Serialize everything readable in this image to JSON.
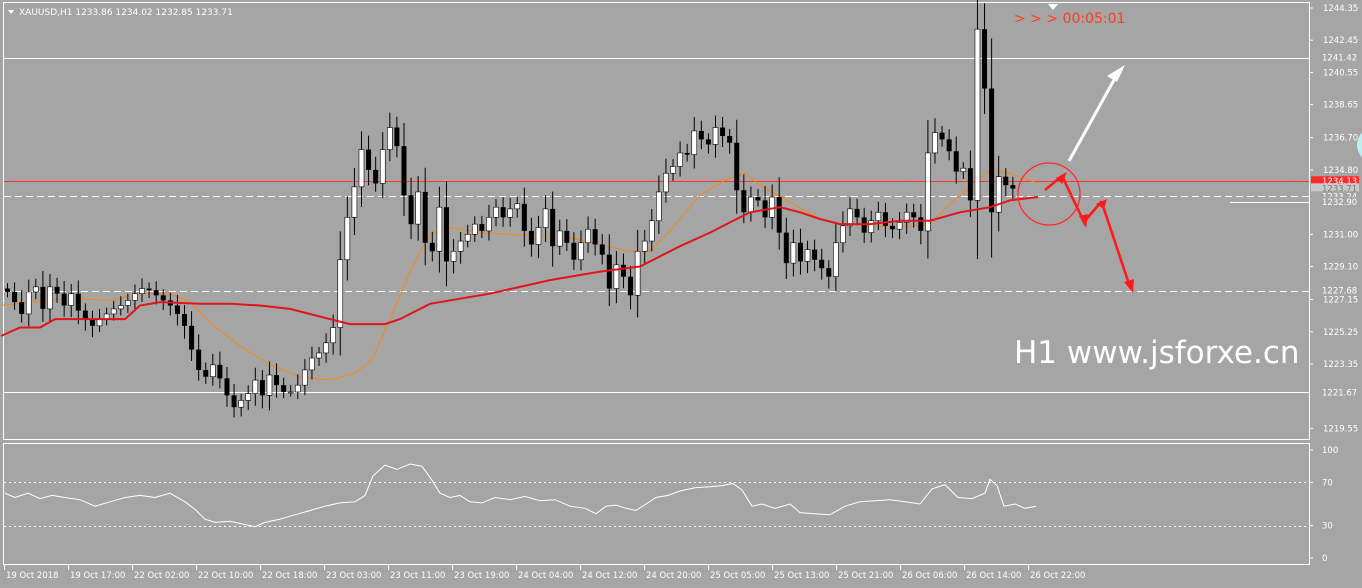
{
  "header": {
    "ohlc": "XAUUSD,H1  1233.86 1234.02 1232.85 1233.71",
    "countdown": "> > >  00:05:01"
  },
  "watermark": "H1 www.jsforxe.cn",
  "colors": {
    "background": "#a5a5a5",
    "bull_body": "#ffffff",
    "bear_body": "#000000",
    "wick": "#000000",
    "ma_slow": "#e0151c",
    "ma_fast": "#f0891c",
    "resistance_line": "#ff3333",
    "grid_level": "#ffffff",
    "annotation_red": "#ff1a1a"
  },
  "chart_data": {
    "type": "candlestick",
    "symbol": "XAUUSD",
    "timeframe": "H1",
    "ylim": [
      1219.55,
      1244.35
    ],
    "price_ticks": [
      "1244.35",
      "1242.45",
      "1240.55",
      "1238.65",
      "1236.70",
      "1234.80",
      "1231.00",
      "1229.10",
      "1227.15",
      "1225.25",
      "1223.35",
      "1219.55"
    ],
    "x_labels": [
      "19 Oct 2018",
      "19 Oct 17:00",
      "22 Oct 02:00",
      "22 Oct 10:00",
      "22 Oct 18:00",
      "23 Oct 03:00",
      "23 Oct 11:00",
      "23 Oct 19:00",
      "24 Oct 04:00",
      "24 Oct 12:00",
      "24 Oct 20:00",
      "25 Oct 05:00",
      "25 Oct 13:00",
      "25 Oct 21:00",
      "26 Oct 06:00",
      "26 Oct 14:00",
      "26 Oct 22:00"
    ],
    "levels": [
      {
        "price": 1241.42,
        "label": "1241.42",
        "style": "solid",
        "color": "#ffffff"
      },
      {
        "price": 1234.13,
        "label": "1234.13",
        "style": "solid",
        "color": "#ff3333"
      },
      {
        "price": 1233.71,
        "label": "1233.71",
        "style": "current",
        "color": "#c9c9c9"
      },
      {
        "price": 1233.24,
        "label": "1233.24",
        "style": "dashed",
        "color": "#ffffff"
      },
      {
        "price": 1232.9,
        "label": "1232.90",
        "style": "partial",
        "color": "#ffffff"
      },
      {
        "price": 1227.68,
        "label": "1227.68",
        "style": "dashed",
        "color": "#ffffff"
      },
      {
        "price": 1221.67,
        "label": "1221.67",
        "style": "solid",
        "color": "#ffffff"
      }
    ],
    "close": [
      1227.6,
      1227.0,
      1226.3,
      1227.6,
      1227.9,
      1226.6,
      1227.9,
      1227.5,
      1226.8,
      1227.5,
      1226.5,
      1226.0,
      1225.6,
      1226.0,
      1226.3,
      1226.6,
      1226.8,
      1227.1,
      1227.5,
      1227.8,
      1227.7,
      1227.4,
      1227.1,
      1226.8,
      1226.3,
      1225.6,
      1224.2,
      1223.0,
      1222.6,
      1223.3,
      1222.5,
      1221.5,
      1220.8,
      1221.2,
      1221.6,
      1222.4,
      1221.5,
      1222.7,
      1222.1,
      1221.7,
      1221.7,
      1222.1,
      1223.0,
      1223.7,
      1224.0,
      1224.6,
      1225.5,
      1229.5,
      1232.0,
      1233.8,
      1236.0,
      1234.8,
      1234.0,
      1236.0,
      1237.3,
      1236.2,
      1233.3,
      1231.6,
      1233.5,
      1230.5,
      1230.0,
      1232.6,
      1229.4,
      1230.0,
      1230.6,
      1231.0,
      1231.6,
      1231.2,
      1232.0,
      1232.6,
      1232.0,
      1232.5,
      1232.8,
      1231.2,
      1230.4,
      1231.4,
      1232.5,
      1230.3,
      1231.2,
      1230.5,
      1229.5,
      1230.5,
      1231.3,
      1230.4,
      1229.8,
      1227.8,
      1229.2,
      1228.5,
      1227.4,
      1230.0,
      1230.6,
      1231.8,
      1233.5,
      1234.6,
      1235.0,
      1235.8,
      1235.7,
      1237.1,
      1236.6,
      1236.3,
      1237.3,
      1236.8,
      1236.4,
      1233.6,
      1232.3,
      1233.2,
      1233.0,
      1232.0,
      1233.2,
      1231.1,
      1229.3,
      1230.5,
      1229.4,
      1230.1,
      1229.5,
      1229.0,
      1228.5,
      1230.5,
      1231.5,
      1232.5,
      1232.0,
      1231.1,
      1231.8,
      1232.3,
      1231.5,
      1231.3,
      1231.7,
      1232.3,
      1232.0,
      1231.2,
      1235.8,
      1237.0,
      1236.6,
      1235.9,
      1234.7,
      1234.9,
      1233.0,
      1243.1,
      1239.6,
      1232.3,
      1234.4,
      1233.9,
      1233.7
    ],
    "ma_slow_points": [
      [
        1,
        1225.0
      ],
      [
        20,
        1225.5
      ],
      [
        40,
        1225.5
      ],
      [
        55,
        1226.0
      ],
      [
        75,
        1226.0
      ],
      [
        100,
        1226.0
      ],
      [
        125,
        1226.0
      ],
      [
        140,
        1226.8
      ],
      [
        160,
        1227.0
      ],
      [
        200,
        1226.9
      ],
      [
        230,
        1226.9
      ],
      [
        260,
        1226.8
      ],
      [
        290,
        1226.6
      ],
      [
        330,
        1226.0
      ],
      [
        350,
        1225.7
      ],
      [
        385,
        1225.7
      ],
      [
        400,
        1226.0
      ],
      [
        410,
        1226.3
      ],
      [
        430,
        1226.9
      ],
      [
        460,
        1227.2
      ],
      [
        490,
        1227.5
      ],
      [
        520,
        1227.9
      ],
      [
        550,
        1228.3
      ],
      [
        600,
        1228.8
      ],
      [
        640,
        1229.1
      ],
      [
        680,
        1230.3
      ],
      [
        710,
        1231.1
      ],
      [
        730,
        1231.7
      ],
      [
        750,
        1232.3
      ],
      [
        780,
        1232.6
      ],
      [
        800,
        1232.3
      ],
      [
        820,
        1231.9
      ],
      [
        840,
        1231.6
      ],
      [
        870,
        1231.6
      ],
      [
        900,
        1231.8
      ],
      [
        930,
        1231.8
      ],
      [
        960,
        1232.3
      ],
      [
        990,
        1232.6
      ],
      [
        1010,
        1233.0
      ],
      [
        1038,
        1233.2
      ]
    ],
    "ma_fast_points": [
      [
        1,
        1226.8
      ],
      [
        40,
        1227.1
      ],
      [
        80,
        1227.2
      ],
      [
        110,
        1227.1
      ],
      [
        140,
        1227.5
      ],
      [
        170,
        1227.5
      ],
      [
        190,
        1227.0
      ],
      [
        210,
        1225.8
      ],
      [
        240,
        1224.4
      ],
      [
        270,
        1223.3
      ],
      [
        300,
        1222.6
      ],
      [
        330,
        1222.4
      ],
      [
        355,
        1222.8
      ],
      [
        372,
        1223.6
      ],
      [
        390,
        1226.0
      ],
      [
        410,
        1228.8
      ],
      [
        430,
        1231.0
      ],
      [
        450,
        1231.4
      ],
      [
        480,
        1231.1
      ],
      [
        510,
        1231.0
      ],
      [
        540,
        1230.9
      ],
      [
        570,
        1230.8
      ],
      [
        600,
        1230.4
      ],
      [
        630,
        1230.0
      ],
      [
        650,
        1230.0
      ],
      [
        670,
        1231.2
      ],
      [
        700,
        1233.3
      ],
      [
        725,
        1234.2
      ],
      [
        745,
        1234.6
      ],
      [
        760,
        1233.9
      ],
      [
        790,
        1232.9
      ],
      [
        820,
        1231.9
      ],
      [
        840,
        1231.6
      ],
      [
        870,
        1231.5
      ],
      [
        900,
        1231.4
      ],
      [
        930,
        1231.6
      ],
      [
        950,
        1232.8
      ],
      [
        970,
        1233.8
      ],
      [
        990,
        1234.8
      ],
      [
        1010,
        1234.6
      ],
      [
        1038,
        1234.0
      ]
    ],
    "rsi": {
      "period": 14,
      "value": 48.8043,
      "levels": [
        70,
        30
      ],
      "ylim": [
        0,
        100
      ],
      "ticks": [
        "100",
        "70",
        "30",
        "0"
      ],
      "points": [
        [
          5,
          60
        ],
        [
          15,
          56
        ],
        [
          28,
          60
        ],
        [
          40,
          55
        ],
        [
          52,
          58
        ],
        [
          65,
          56
        ],
        [
          80,
          54
        ],
        [
          95,
          48
        ],
        [
          110,
          52
        ],
        [
          125,
          56
        ],
        [
          140,
          58
        ],
        [
          155,
          56
        ],
        [
          170,
          60
        ],
        [
          185,
          52
        ],
        [
          195,
          45
        ],
        [
          205,
          36
        ],
        [
          215,
          33
        ],
        [
          230,
          34
        ],
        [
          245,
          31
        ],
        [
          255,
          29
        ],
        [
          265,
          33
        ],
        [
          280,
          36
        ],
        [
          295,
          40
        ],
        [
          310,
          44
        ],
        [
          325,
          48
        ],
        [
          340,
          51
        ],
        [
          355,
          52
        ],
        [
          365,
          58
        ],
        [
          373,
          76
        ],
        [
          385,
          86
        ],
        [
          397,
          82
        ],
        [
          410,
          87
        ],
        [
          422,
          85
        ],
        [
          432,
          72
        ],
        [
          440,
          60
        ],
        [
          450,
          56
        ],
        [
          460,
          58
        ],
        [
          470,
          52
        ],
        [
          482,
          51
        ],
        [
          495,
          56
        ],
        [
          510,
          54
        ],
        [
          525,
          57
        ],
        [
          540,
          53
        ],
        [
          555,
          54
        ],
        [
          570,
          48
        ],
        [
          585,
          46
        ],
        [
          596,
          41
        ],
        [
          606,
          48
        ],
        [
          616,
          49
        ],
        [
          626,
          46
        ],
        [
          636,
          44
        ],
        [
          646,
          50
        ],
        [
          656,
          56
        ],
        [
          668,
          58
        ],
        [
          680,
          62
        ],
        [
          695,
          65
        ],
        [
          710,
          66
        ],
        [
          722,
          67
        ],
        [
          733,
          69
        ],
        [
          742,
          63
        ],
        [
          752,
          48
        ],
        [
          762,
          50
        ],
        [
          775,
          46
        ],
        [
          790,
          50
        ],
        [
          800,
          42
        ],
        [
          815,
          41
        ],
        [
          830,
          40
        ],
        [
          845,
          48
        ],
        [
          860,
          52
        ],
        [
          875,
          53
        ],
        [
          890,
          54
        ],
        [
          905,
          52
        ],
        [
          920,
          50
        ],
        [
          932,
          64
        ],
        [
          945,
          68
        ],
        [
          958,
          56
        ],
        [
          972,
          55
        ],
        [
          985,
          60
        ],
        [
          990,
          73
        ],
        [
          997,
          67
        ],
        [
          1004,
          48
        ],
        [
          1015,
          50
        ],
        [
          1025,
          46
        ],
        [
          1036,
          48
        ]
      ]
    }
  }
}
